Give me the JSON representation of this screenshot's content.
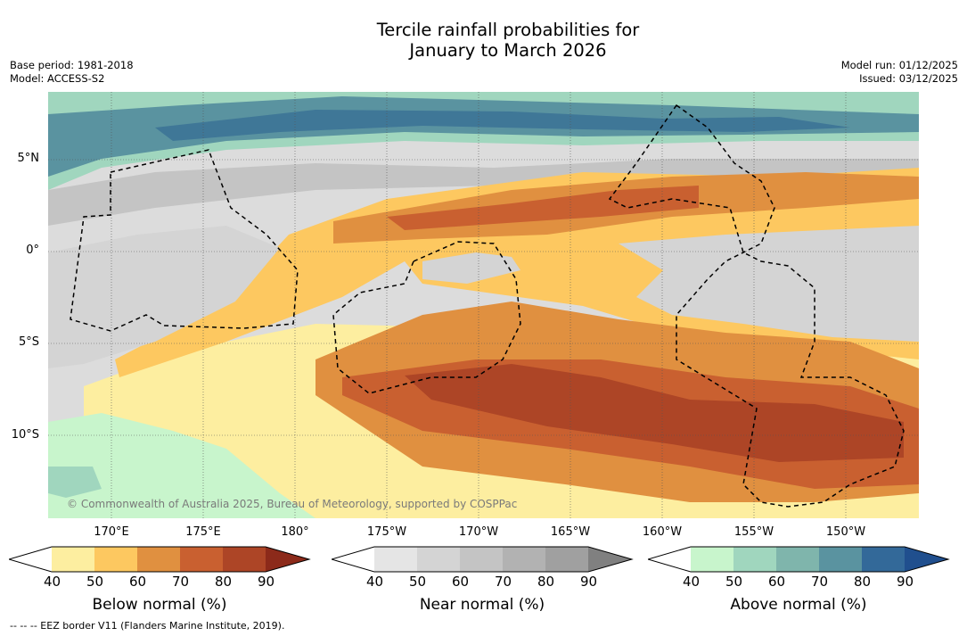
{
  "title": {
    "line1": "Tercile rainfall probabilities for",
    "line2": "January to March 2026"
  },
  "meta": {
    "base_period": "Base period: 1981-2018",
    "model": "Model: ACCESS-S2",
    "model_run": "Model run: 01/12/2025",
    "issued": "Issued: 03/12/2025"
  },
  "map": {
    "lat_labels": [
      "5°N",
      "0°",
      "5°S",
      "10°S"
    ],
    "lon_labels": [
      "170°E",
      "175°E",
      "180°",
      "175°W",
      "170°W",
      "165°W",
      "160°W",
      "155°W",
      "150°W"
    ],
    "copyright": "© Commonwealth of Australia 2025, Bureau of Meteorology, supported by COSPPac"
  },
  "colorbars": [
    {
      "label": "Below normal (%)",
      "ticks": [
        "40",
        "50",
        "60",
        "70",
        "80",
        "90"
      ],
      "colors": [
        "#ffffff",
        "#fdeea0",
        "#fdc860",
        "#e09040",
        "#c96030",
        "#ad4526",
        "#8c2a1a"
      ]
    },
    {
      "label": "Near normal (%)",
      "ticks": [
        "40",
        "50",
        "60",
        "70",
        "80",
        "90"
      ],
      "colors": [
        "#ffffff",
        "#e5e5e5",
        "#d4d4d4",
        "#c4c4c4",
        "#b2b2b2",
        "#a0a0a0",
        "#808080"
      ]
    },
    {
      "label": "Above normal (%)",
      "ticks": [
        "40",
        "50",
        "60",
        "70",
        "80",
        "90"
      ],
      "colors": [
        "#ffffff",
        "#c8f5cc",
        "#a0d6be",
        "#7fb5ac",
        "#5a93a0",
        "#336999",
        "#204f8e"
      ]
    }
  ],
  "footnote": "-- -- -- EEZ border V11 (Flanders Marine Institute, 2019)."
}
